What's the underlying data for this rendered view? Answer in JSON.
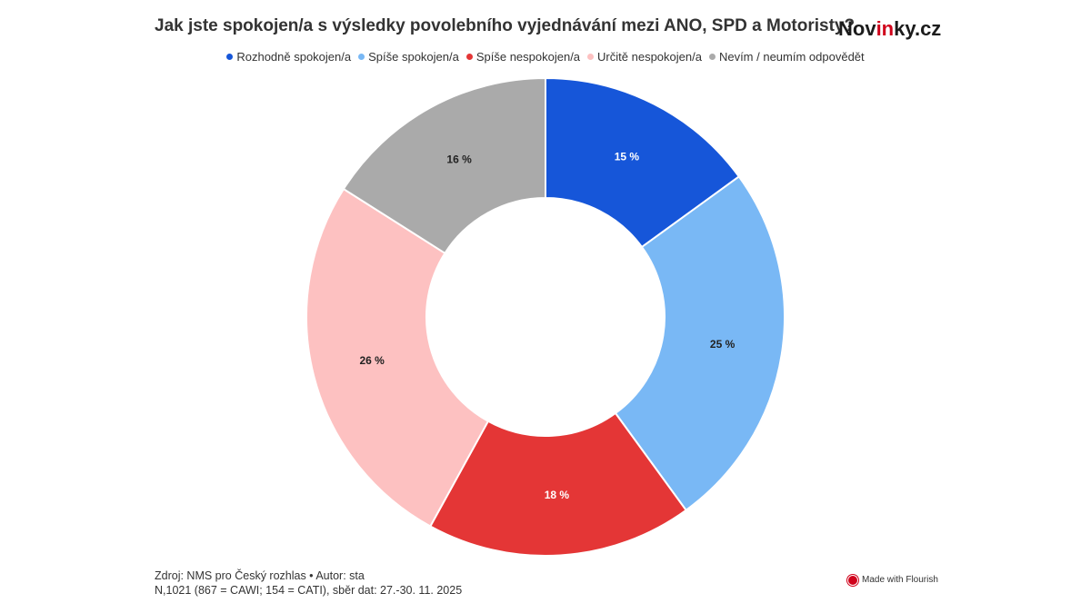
{
  "chart_data": {
    "type": "pie",
    "title": "Jak jste spokojen/a s výsledky povolebního vyjednávání mezi ANO, SPD a Motoristy?",
    "categories": [
      "Rozhodně spokojen/a",
      "Spíše spokojen/a",
      "Spíše nespokojen/a",
      "Určitě nespokojen/a",
      "Nevím / neumím odpovědět"
    ],
    "values": [
      15,
      25,
      18,
      26,
      16
    ],
    "labels": [
      "15 %",
      "25 %",
      "18 %",
      "26 %",
      "16 %"
    ],
    "colors": [
      "#1656d9",
      "#79b8f5",
      "#e43636",
      "#fdc1c1",
      "#aaaaaa"
    ],
    "label_colors": [
      "#ffffff",
      "#222222",
      "#ffffff",
      "#222222",
      "#222222"
    ],
    "legend_position": "top"
  },
  "brand": {
    "prefix": "Nov",
    "accent": "in",
    "suffix": "ky.cz"
  },
  "footer": {
    "source": "Zdroj: NMS pro Český rozhlas • Autor: sta",
    "sample": "N,1021 (867 = CAWI; 154 = CATI), sběr dat: 27.-30. 11. 2025"
  },
  "made_with": "Made with Flourish"
}
